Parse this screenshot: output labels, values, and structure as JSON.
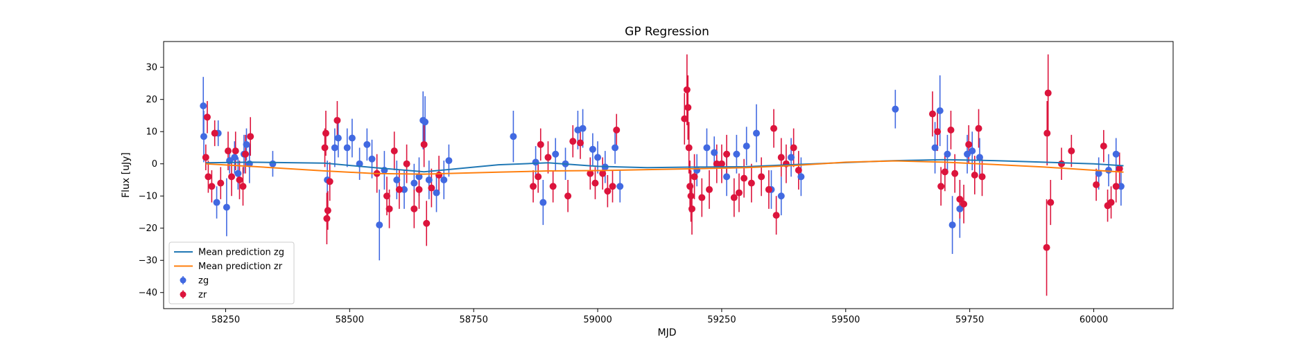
{
  "chart_data": {
    "type": "scatter",
    "title": "GP Regression",
    "xlabel": "MJD",
    "ylabel": "Flux [uJy]",
    "xlim": [
      58125,
      60160
    ],
    "ylim": [
      -45,
      38
    ],
    "x_ticks": [
      58250,
      58500,
      58750,
      59000,
      59250,
      59500,
      59750,
      60000
    ],
    "y_ticks": [
      -40,
      -30,
      -20,
      -10,
      0,
      10,
      20,
      30
    ],
    "grid": false,
    "legend_position": "lower-left",
    "lines": [
      {
        "name": "Mean prediction zg",
        "color": "#1f77b4",
        "x": [
          58210,
          58300,
          58450,
          58550,
          58650,
          58800,
          58900,
          59000,
          59100,
          59200,
          59300,
          59400,
          59500,
          59600,
          59700,
          59800,
          59900,
          60000,
          60060
        ],
        "y": [
          0.3,
          0.5,
          0.2,
          -1.2,
          -2.5,
          -0.3,
          0.3,
          -0.8,
          -1.2,
          -1.0,
          -0.9,
          -0.2,
          0.4,
          1.0,
          1.3,
          1.0,
          0.5,
          0.0,
          -0.6
        ]
      },
      {
        "name": "Mean prediction zr",
        "color": "#ff7f0e",
        "x": [
          58210,
          58300,
          58450,
          58550,
          58650,
          58800,
          58900,
          59000,
          59100,
          59200,
          59300,
          59400,
          59500,
          59600,
          59700,
          59800,
          59900,
          60000,
          60060
        ],
        "y": [
          0.0,
          -0.8,
          -2.2,
          -3.0,
          -3.2,
          -2.6,
          -2.2,
          -2.1,
          -1.8,
          -1.5,
          -1.2,
          -0.5,
          0.5,
          0.9,
          0.5,
          -0.2,
          -1.0,
          -2.0,
          -2.6
        ]
      }
    ],
    "series": [
      {
        "name": "zg",
        "color": "#4169e1",
        "points": [
          [
            58205,
            18,
            9
          ],
          [
            58206,
            8.5,
            8
          ],
          [
            58232,
            -12,
            5
          ],
          [
            58235,
            9.5,
            4
          ],
          [
            58252,
            -13.5,
            9
          ],
          [
            58258,
            1,
            4
          ],
          [
            58268,
            2,
            5
          ],
          [
            58275,
            -3,
            5
          ],
          [
            58287,
            3,
            6
          ],
          [
            58292,
            6,
            5
          ],
          [
            58298,
            0,
            6
          ],
          [
            58345,
            0,
            4
          ],
          [
            58455,
            -5,
            6
          ],
          [
            58470,
            5,
            6
          ],
          [
            58477,
            8,
            6
          ],
          [
            58495,
            5,
            6
          ],
          [
            58505,
            8,
            6
          ],
          [
            58520,
            0,
            5
          ],
          [
            58535,
            6,
            5
          ],
          [
            58545,
            1.5,
            6
          ],
          [
            58560,
            -19,
            11
          ],
          [
            58570,
            -2,
            6
          ],
          [
            58595,
            -5,
            6
          ],
          [
            58610,
            -8,
            6
          ],
          [
            58630,
            -6,
            6
          ],
          [
            58640,
            -4,
            6
          ],
          [
            58648,
            13.5,
            9
          ],
          [
            58652,
            13,
            8
          ],
          [
            58660,
            -5,
            6
          ],
          [
            58675,
            -9,
            6
          ],
          [
            58690,
            -5,
            6
          ],
          [
            58700,
            1,
            5
          ],
          [
            58830,
            8.5,
            8
          ],
          [
            58875,
            0.5,
            5
          ],
          [
            58890,
            -12,
            7
          ],
          [
            58915,
            3,
            5
          ],
          [
            58935,
            0,
            5
          ],
          [
            58960,
            10.5,
            6
          ],
          [
            58970,
            11,
            6
          ],
          [
            58990,
            4.5,
            5
          ],
          [
            59000,
            2,
            5
          ],
          [
            59015,
            -1,
            5
          ],
          [
            59035,
            5,
            5
          ],
          [
            59045,
            -7,
            5
          ],
          [
            59200,
            -2,
            5
          ],
          [
            59220,
            5,
            6
          ],
          [
            59235,
            3.5,
            5
          ],
          [
            59260,
            -4,
            6
          ],
          [
            59280,
            3,
            6
          ],
          [
            59300,
            5.5,
            6
          ],
          [
            59320,
            9.5,
            9
          ],
          [
            59350,
            -8,
            6
          ],
          [
            59370,
            -10,
            6
          ],
          [
            59390,
            2,
            6
          ],
          [
            59410,
            -4,
            6
          ],
          [
            59600,
            17,
            6
          ],
          [
            59680,
            5,
            8
          ],
          [
            59690,
            16.5,
            11
          ],
          [
            59705,
            3,
            6
          ],
          [
            59715,
            -19,
            9
          ],
          [
            59730,
            -14,
            9
          ],
          [
            59745,
            3,
            6
          ],
          [
            59755,
            4,
            6
          ],
          [
            59770,
            2,
            6
          ],
          [
            60010,
            -3,
            5
          ],
          [
            60030,
            -2,
            5
          ],
          [
            60045,
            3,
            5
          ],
          [
            60055,
            -7,
            6
          ]
        ]
      },
      {
        "name": "zr",
        "color": "#dc143c",
        "points": [
          [
            58210,
            2,
            4
          ],
          [
            58213,
            14.5,
            5
          ],
          [
            58215,
            -4,
            5
          ],
          [
            58222,
            -7,
            5
          ],
          [
            58228,
            9.5,
            4
          ],
          [
            58240,
            -6,
            5
          ],
          [
            58255,
            4,
            6
          ],
          [
            58262,
            -4,
            6
          ],
          [
            58270,
            4,
            6
          ],
          [
            58278,
            -5,
            6
          ],
          [
            58285,
            -7,
            6
          ],
          [
            58290,
            3,
            6
          ],
          [
            58300,
            8.5,
            6
          ],
          [
            58450,
            5,
            6
          ],
          [
            58452,
            9.5,
            7
          ],
          [
            58454,
            -17,
            8
          ],
          [
            58456,
            -14.5,
            6
          ],
          [
            58460,
            -5.5,
            6
          ],
          [
            58475,
            13.5,
            6
          ],
          [
            58555,
            -3,
            6
          ],
          [
            58575,
            -10,
            6
          ],
          [
            58580,
            -14,
            6
          ],
          [
            58590,
            4,
            6
          ],
          [
            58600,
            -8,
            6
          ],
          [
            58615,
            0,
            6
          ],
          [
            58630,
            -14,
            6
          ],
          [
            58640,
            -8,
            6
          ],
          [
            58650,
            6,
            7
          ],
          [
            58655,
            -18.5,
            7
          ],
          [
            58665,
            -7.5,
            6
          ],
          [
            58680,
            -3.5,
            6
          ],
          [
            58870,
            -7,
            5
          ],
          [
            58880,
            -4,
            5
          ],
          [
            58885,
            6,
            5
          ],
          [
            58900,
            2,
            5
          ],
          [
            58910,
            -7,
            5
          ],
          [
            58940,
            -10,
            5
          ],
          [
            58950,
            7,
            5
          ],
          [
            58965,
            6.5,
            5
          ],
          [
            58985,
            -3,
            5
          ],
          [
            58995,
            -6,
            5
          ],
          [
            59010,
            -3,
            5
          ],
          [
            59020,
            -8.5,
            5
          ],
          [
            59030,
            -7,
            5
          ],
          [
            59038,
            10.5,
            5
          ],
          [
            59175,
            14,
            8
          ],
          [
            59180,
            23,
            11
          ],
          [
            59182,
            17.5,
            10
          ],
          [
            59184,
            5,
            8
          ],
          [
            59186,
            -7,
            8
          ],
          [
            59188,
            -10,
            8
          ],
          [
            59190,
            -14,
            8
          ],
          [
            59195,
            -4,
            7
          ],
          [
            59210,
            -10.5,
            6
          ],
          [
            59225,
            -8,
            6
          ],
          [
            59240,
            0,
            6
          ],
          [
            59250,
            0,
            6
          ],
          [
            59260,
            3,
            6
          ],
          [
            59275,
            -10.5,
            6
          ],
          [
            59285,
            -9,
            6
          ],
          [
            59295,
            -4.5,
            6
          ],
          [
            59310,
            -6,
            6
          ],
          [
            59330,
            -4,
            6
          ],
          [
            59345,
            -8,
            6
          ],
          [
            59355,
            11,
            6
          ],
          [
            59360,
            -16,
            6
          ],
          [
            59370,
            2,
            6
          ],
          [
            59380,
            0,
            6
          ],
          [
            59395,
            5,
            6
          ],
          [
            59405,
            -2,
            6
          ],
          [
            59675,
            15.5,
            7
          ],
          [
            59685,
            10,
            6
          ],
          [
            59692,
            -7,
            6
          ],
          [
            59700,
            -2.5,
            6
          ],
          [
            59712,
            10.5,
            6
          ],
          [
            59720,
            -3,
            6
          ],
          [
            59730,
            -11,
            6
          ],
          [
            59738,
            -12.5,
            6
          ],
          [
            59748,
            6,
            6
          ],
          [
            59760,
            -3.5,
            6
          ],
          [
            59768,
            11,
            6
          ],
          [
            59775,
            -4,
            6
          ],
          [
            59905,
            -26,
            15
          ],
          [
            59906,
            9.5,
            10
          ],
          [
            59908,
            22,
            12
          ],
          [
            59913,
            -12,
            7
          ],
          [
            59935,
            0,
            5
          ],
          [
            59955,
            4,
            5
          ],
          [
            60005,
            -6.5,
            5
          ],
          [
            60020,
            5.5,
            5
          ],
          [
            60028,
            -13,
            5
          ],
          [
            60035,
            -12,
            5
          ],
          [
            60045,
            -7,
            5
          ],
          [
            60052,
            -1.5,
            5
          ]
        ]
      }
    ]
  }
}
